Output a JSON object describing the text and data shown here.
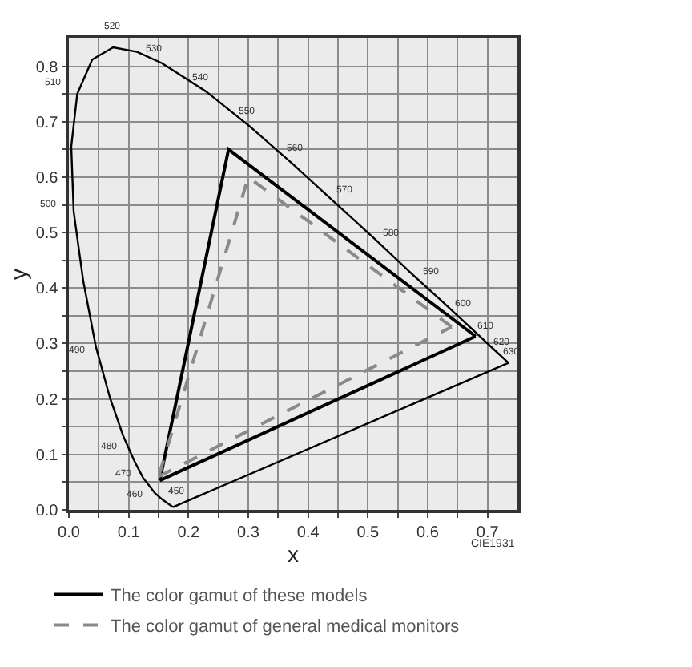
{
  "chart_data": {
    "type": "line",
    "xlabel": "x",
    "ylabel": "y",
    "xlim": [
      0,
      0.75
    ],
    "ylim": [
      0,
      0.85
    ],
    "xticks": [
      {
        "value": 0,
        "label": "0.0"
      },
      {
        "value": 0.05,
        "label": null
      },
      0.1,
      {
        "value": 0.15,
        "label": null
      },
      0.2,
      {
        "value": 0.25,
        "label": null
      },
      0.3,
      {
        "value": 0.35,
        "label": null
      },
      0.4,
      {
        "value": 0.45,
        "label": null
      },
      0.5,
      {
        "value": 0.55,
        "label": null
      },
      0.6,
      {
        "value": 0.65,
        "label": null
      },
      0.7
    ],
    "yticks": [
      {
        "value": 0,
        "label": "0.0"
      },
      {
        "value": 0.05,
        "label": null
      },
      0.1,
      {
        "value": 0.15,
        "label": null
      },
      0.2,
      {
        "value": 0.25,
        "label": null
      },
      0.3,
      {
        "value": 0.35,
        "label": null
      },
      0.4,
      {
        "value": 0.45,
        "label": null
      },
      0.5,
      {
        "value": 0.55,
        "label": null
      },
      0.6,
      {
        "value": 0.65,
        "label": null
      },
      0.7,
      {
        "value": 0.75,
        "label": null
      },
      0.8
    ],
    "grid": true,
    "legend": "bottom",
    "marker": "none",
    "series": [
      {
        "color": "#000000",
        "line_style": "solid",
        "x": [
          0.174,
          0.157,
          0.144,
          0.124,
          0.11,
          0.091,
          0.069,
          0.045,
          0.024,
          0.008,
          0.004,
          0.014,
          0.039,
          0.074,
          0.114,
          0.155,
          0.23,
          0.302,
          0.373,
          0.444,
          0.513,
          0.575,
          0.627,
          0.666,
          0.692,
          0.708,
          0.735
        ],
        "values": [
          0.005,
          0.018,
          0.03,
          0.058,
          0.087,
          0.133,
          0.201,
          0.295,
          0.413,
          0.538,
          0.655,
          0.75,
          0.812,
          0.834,
          0.826,
          0.806,
          0.754,
          0.692,
          0.625,
          0.555,
          0.487,
          0.424,
          0.373,
          0.334,
          0.308,
          0.292,
          0.265
        ]
      },
      {
        "color": "#000000",
        "line_style": "solid",
        "x": [
          0.735,
          0.174
        ],
        "values": [
          0.265,
          0.005
        ]
      },
      {
        "name": "The color gamut of these models",
        "color": "#000000",
        "line_style": "solid",
        "x": [
          0.68,
          0.267,
          0.152
        ],
        "values": [
          0.313,
          0.65,
          0.053
        ]
      },
      {
        "color": "#000000",
        "line_style": "solid",
        "x": [
          0.152,
          0.68
        ],
        "values": [
          0.053,
          0.313
        ]
      },
      {
        "name": "The color gamut of general medical monitors",
        "color": "#8a8a8a",
        "line_style": "dashed",
        "x": [
          0.64,
          0.3,
          0.15
        ],
        "values": [
          0.33,
          0.6,
          0.06
        ]
      },
      {
        "color": "#8a8a8a",
        "line_style": "dashed",
        "x": [
          0.15,
          0.64
        ],
        "values": [
          0.06,
          0.33
        ]
      }
    ],
    "annotations": [
      {
        "text": "450",
        "x": 0.157,
        "y": 0.018
      },
      {
        "text": "460",
        "x": 0.144,
        "y": 0.03
      },
      {
        "text": "470",
        "x": 0.124,
        "y": 0.058
      },
      {
        "text": "480",
        "x": 0.091,
        "y": 0.133
      },
      {
        "text": "490",
        "x": 0.045,
        "y": 0.295
      },
      {
        "text": "500",
        "x": 0.008,
        "y": 0.538
      },
      {
        "text": "510",
        "x": 0.014,
        "y": 0.75
      },
      {
        "text": "520",
        "x": 0.074,
        "y": 0.834
      },
      {
        "text": "530",
        "x": 0.155,
        "y": 0.806
      },
      {
        "text": "540",
        "x": 0.23,
        "y": 0.754
      },
      {
        "text": "550",
        "x": 0.302,
        "y": 0.692
      },
      {
        "text": "560",
        "x": 0.373,
        "y": 0.625
      },
      {
        "text": "570",
        "x": 0.444,
        "y": 0.555
      },
      {
        "text": "580",
        "x": 0.513,
        "y": 0.487
      },
      {
        "text": "590",
        "x": 0.575,
        "y": 0.424
      },
      {
        "text": "600",
        "x": 0.627,
        "y": 0.373
      },
      {
        "text": "610",
        "x": 0.666,
        "y": 0.334
      },
      {
        "text": "620",
        "x": 0.692,
        "y": 0.308
      },
      {
        "text": "630",
        "x": 0.708,
        "y": 0.292
      },
      "CIE1931"
    ]
  }
}
